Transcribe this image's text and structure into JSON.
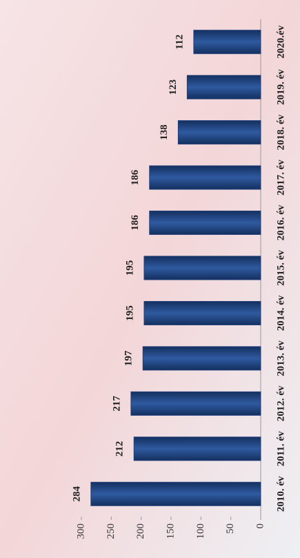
{
  "chart_data": {
    "type": "bar",
    "categories": [
      "2010. év",
      "2011. év",
      "2012. év",
      "2013. év",
      "2014. év",
      "2015. év",
      "2016. év",
      "2017. év",
      "2018. év",
      "2019. év",
      "2020.év"
    ],
    "values": [
      284,
      212,
      217,
      197,
      195,
      195,
      186,
      186,
      138,
      123,
      112
    ],
    "color": "#1f3d7a",
    "ylim": [
      0,
      300
    ],
    "yticks": [
      0,
      50,
      100,
      150,
      200,
      250,
      300
    ]
  }
}
